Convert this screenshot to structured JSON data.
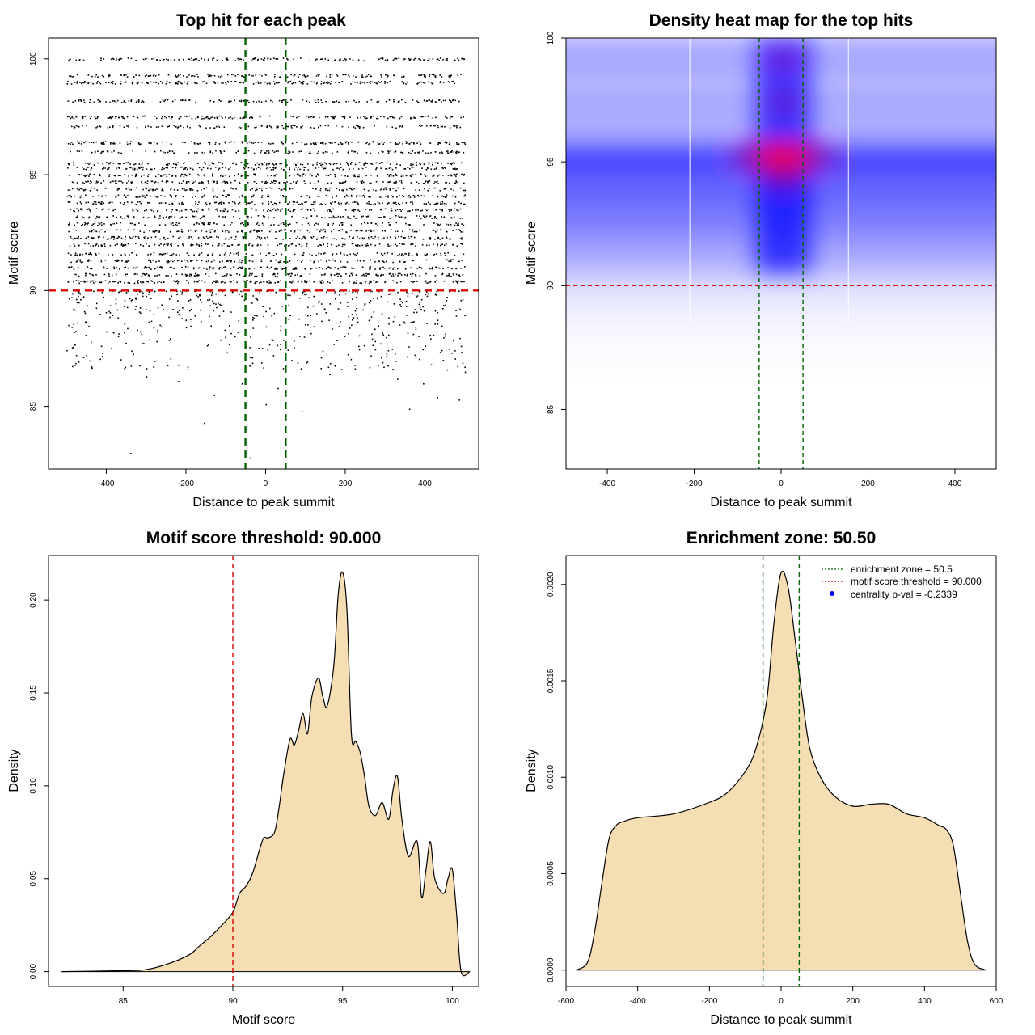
{
  "chart_data": [
    {
      "type": "scatter",
      "title": "Top hit for each peak",
      "xlabel": "Distance to peak summit",
      "ylabel": "Motif score",
      "xlim": [
        -545,
        535
      ],
      "ylim": [
        82.3,
        100.9
      ],
      "xticks": [
        -400,
        -200,
        0,
        200,
        400
      ],
      "yticks": [
        85,
        90,
        95,
        100
      ],
      "hline": {
        "value": 90,
        "color": "#dd0000"
      },
      "vlines": {
        "values": [
          -50.5,
          50.5
        ],
        "color": "#006400"
      },
      "point_x_range": [
        -500,
        500
      ],
      "dense_score_levels": [
        100,
        99.3,
        99.0,
        98.2,
        97.5,
        97.1,
        96.4,
        96.0,
        95.5,
        95.3,
        95.0,
        94.7,
        94.4,
        94.1,
        93.8,
        93.5,
        93.2,
        92.9,
        92.6,
        92.3,
        92.0,
        91.6,
        91.3,
        91.0,
        90.7,
        90.4
      ],
      "sparse_points": [
        [
          -340,
          83.0
        ],
        [
          -155,
          84.3
        ],
        [
          -40,
          82.8
        ],
        [
          0,
          85.1
        ],
        [
          90,
          84.8
        ],
        [
          360,
          84.9
        ],
        [
          430,
          85.4
        ],
        [
          485,
          85.3
        ],
        [
          -480,
          86.8
        ],
        [
          -410,
          87.3
        ],
        [
          -300,
          86.3
        ],
        [
          -220,
          86.1
        ],
        [
          -130,
          85.5
        ],
        [
          -60,
          86.0
        ],
        [
          30,
          85.8
        ],
        [
          160,
          86.4
        ],
        [
          260,
          86.7
        ],
        [
          330,
          86.2
        ],
        [
          395,
          86.0
        ],
        [
          455,
          86.6
        ],
        [
          500,
          86.5
        ]
      ]
    },
    {
      "type": "heatmap",
      "title": "Density heat map for the top hits",
      "xlabel": "Distance to peak summit",
      "ylabel": "Motif score",
      "xlim": [
        -495,
        495
      ],
      "ylim": [
        82.6,
        100.0
      ],
      "xticks": [
        -400,
        -200,
        0,
        200,
        400
      ],
      "yticks": [
        85,
        90,
        95,
        100
      ],
      "hline": {
        "value": 90,
        "color": "#dd0000"
      },
      "vlines": {
        "values": [
          -50.5,
          50.5
        ],
        "color": "#006400"
      },
      "hotspot": {
        "x": 5,
        "y": 95.2
      },
      "colors": {
        "low": "#ffffff",
        "mid": "#0000ff",
        "high": "#ff0000"
      }
    },
    {
      "type": "area",
      "title": "Motif score threshold: 90.000",
      "xlabel": "Motif score",
      "ylabel": "Density",
      "xlim": [
        81.6,
        101.2
      ],
      "ylim": [
        -0.008,
        0.224
      ],
      "xticks": [
        85,
        90,
        95,
        100
      ],
      "yticks": [
        0.0,
        0.05,
        0.1,
        0.15,
        0.2
      ],
      "ytick_labels": [
        "0.00",
        "0.05",
        "0.10",
        "0.15",
        "0.20"
      ],
      "vlines": {
        "values": [
          90
        ],
        "color": "#dd0000"
      },
      "fill": "#f5deb3",
      "x": [
        82.2,
        85.0,
        86.0,
        87.0,
        88.0,
        88.5,
        89.0,
        89.5,
        90.0,
        90.3,
        90.6,
        90.9,
        91.2,
        91.4,
        91.6,
        91.9,
        92.1,
        92.3,
        92.6,
        92.8,
        93.0,
        93.2,
        93.4,
        93.6,
        93.9,
        94.1,
        94.3,
        94.6,
        94.8,
        95.0,
        95.2,
        95.4,
        95.6,
        95.8,
        96.0,
        96.2,
        96.5,
        96.8,
        97.1,
        97.3,
        97.5,
        97.7,
        98.0,
        98.4,
        98.6,
        98.8,
        99.0,
        99.2,
        99.6,
        99.8,
        100.0,
        100.2,
        100.4,
        100.8
      ],
      "y": [
        0.0,
        0.0005,
        0.001,
        0.004,
        0.009,
        0.014,
        0.019,
        0.025,
        0.032,
        0.042,
        0.046,
        0.053,
        0.065,
        0.072,
        0.072,
        0.075,
        0.088,
        0.105,
        0.125,
        0.122,
        0.13,
        0.139,
        0.128,
        0.148,
        0.158,
        0.148,
        0.143,
        0.165,
        0.203,
        0.215,
        0.194,
        0.128,
        0.124,
        0.118,
        0.105,
        0.089,
        0.084,
        0.091,
        0.082,
        0.098,
        0.105,
        0.082,
        0.062,
        0.07,
        0.04,
        0.055,
        0.07,
        0.05,
        0.042,
        0.05,
        0.055,
        0.03,
        0.0,
        0.0
      ]
    },
    {
      "type": "area",
      "title": "Enrichment zone: 50.50",
      "xlabel": "Distance to peak summit",
      "ylabel": "Density",
      "xlim": [
        -600,
        600
      ],
      "ylim": [
        -8.5e-05,
        0.00215
      ],
      "xticks": [
        -600,
        -400,
        -200,
        0,
        200,
        400,
        600
      ],
      "yticks": [
        0.0,
        0.0005,
        0.001,
        0.0015,
        0.002
      ],
      "ytick_labels": [
        "0.0000",
        "0.0005",
        "0.0010",
        "0.0015",
        "0.0020"
      ],
      "vlines": {
        "values": [
          -50.5,
          50.5
        ],
        "color": "#006400"
      },
      "fill": "#f5deb3",
      "x": [
        -572,
        -540,
        -520,
        -500,
        -480,
        -460,
        -440,
        -400,
        -300,
        -200,
        -150,
        -100,
        -70,
        -40,
        -20,
        0,
        20,
        40,
        60,
        80,
        110,
        150,
        200,
        250,
        300,
        350,
        400,
        440,
        460,
        480,
        500,
        520,
        540,
        572
      ],
      "y": [
        0.0,
        4e-05,
        0.0002,
        0.00045,
        0.00068,
        0.00075,
        0.00077,
        0.00079,
        0.00081,
        0.00087,
        0.00092,
        0.00103,
        0.00115,
        0.0014,
        0.0018,
        0.00206,
        0.00198,
        0.0017,
        0.0014,
        0.00115,
        0.001,
        0.0009,
        0.00085,
        0.00086,
        0.00086,
        0.00081,
        0.00079,
        0.00075,
        0.00073,
        0.00065,
        0.0004,
        0.00015,
        3e-05,
        0.0
      ],
      "legend": [
        {
          "label": "enrichment zone = 50.5",
          "color": "#006400",
          "style": "dotted"
        },
        {
          "label": "motif score threshold = 90.000",
          "color": "#dd0000",
          "style": "dotted"
        },
        {
          "label": "centrality p-val = -0.2339",
          "color": "#0000ff",
          "style": "dot"
        }
      ]
    }
  ]
}
